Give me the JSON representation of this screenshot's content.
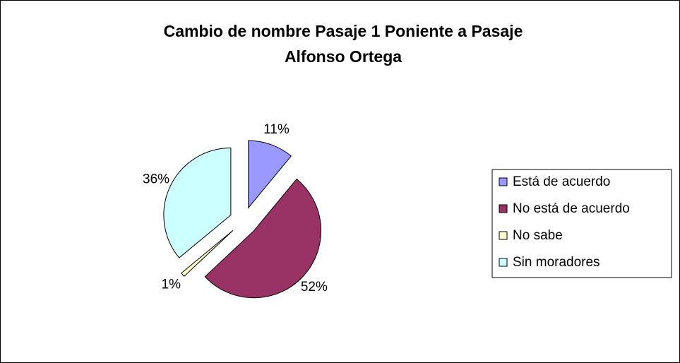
{
  "chart_data": {
    "type": "pie",
    "title": "Cambio de nombre Pasaje 1 Poniente a Pasaje Alfonso Ortega",
    "categories": [
      "Está de acuerdo",
      "No está de acuerdo",
      "No sabe",
      "Sin moradores"
    ],
    "values": [
      11,
      52,
      1,
      36
    ],
    "value_labels": [
      "11%",
      "52%",
      "1%",
      "36%"
    ],
    "colors": [
      "#9999ff",
      "#993366",
      "#ffffcc",
      "#ccffff"
    ],
    "legend": "right"
  }
}
